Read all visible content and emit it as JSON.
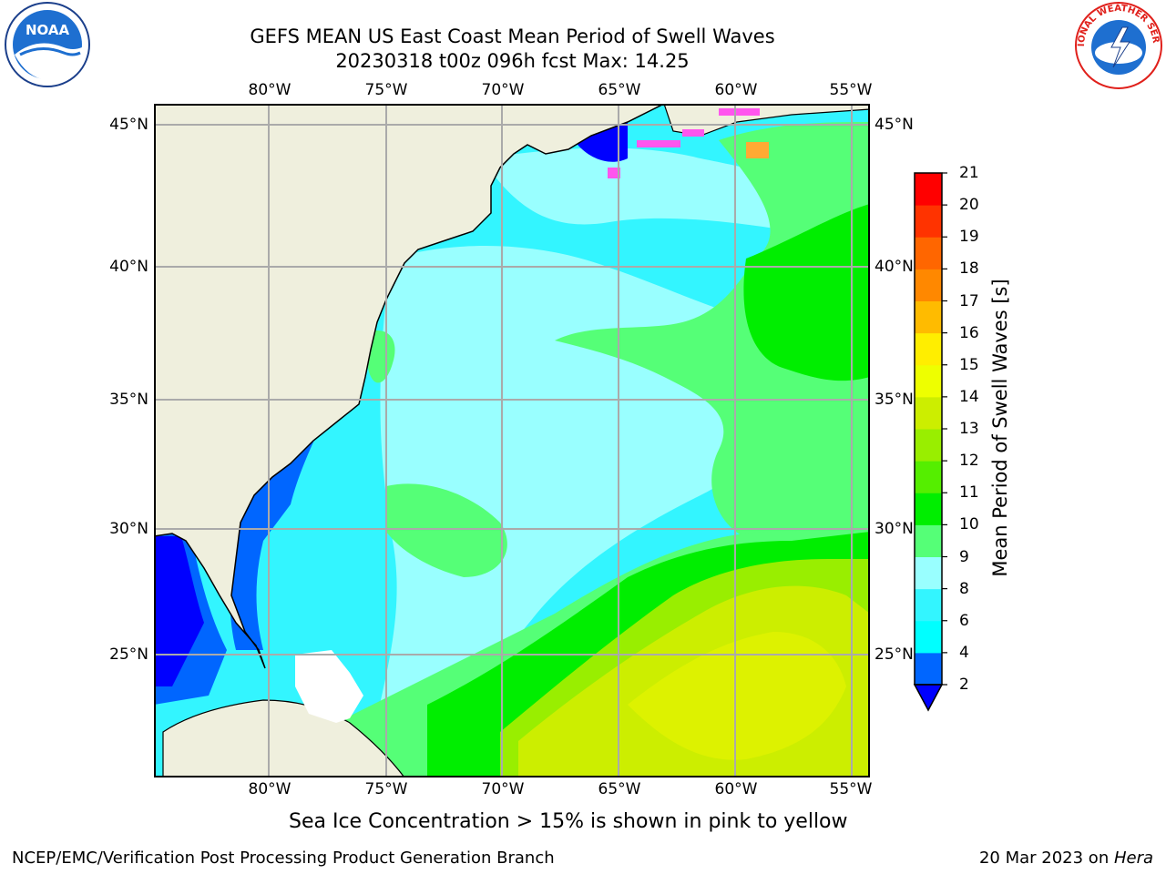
{
  "title_line1": "GEFS MEAN US East Coast Mean Period of Swell Waves",
  "title_line2": "20230318 t00z 096h fcst   Max: 14.25",
  "logos": {
    "left": "NOAA",
    "right": "NATIONAL WEATHER SERVICE"
  },
  "map": {
    "lon_ticks": [
      "80°W",
      "75°W",
      "70°W",
      "65°W",
      "60°W",
      "55°W"
    ],
    "lat_ticks": [
      "45°N",
      "40°N",
      "35°N",
      "30°N",
      "25°N"
    ]
  },
  "colorbar": {
    "title": "Mean Period of Swell Waves [s]",
    "levels": [
      2,
      4,
      6,
      8,
      9,
      10,
      11,
      12,
      13,
      14,
      15,
      16,
      17,
      18,
      19,
      20,
      21
    ],
    "colors": [
      "#0066ff",
      "#00ffff",
      "#33f5ff",
      "#99ffff",
      "#55ff77",
      "#00ee00",
      "#55ee00",
      "#99ee00",
      "#ccee00",
      "#eeff00",
      "#ffee00",
      "#ffbb00",
      "#ff8800",
      "#ff6600",
      "#ff3300",
      "#ff0000"
    ],
    "under_color": "#0000ff"
  },
  "caption": "Sea Ice Concentration > 15% is shown in pink to yellow",
  "footer_left": "NCEP/EMC/Verification Post Processing Product Generation Branch",
  "footer_right_prefix": "20 Mar 2023 on ",
  "footer_right_host": "Hera"
}
